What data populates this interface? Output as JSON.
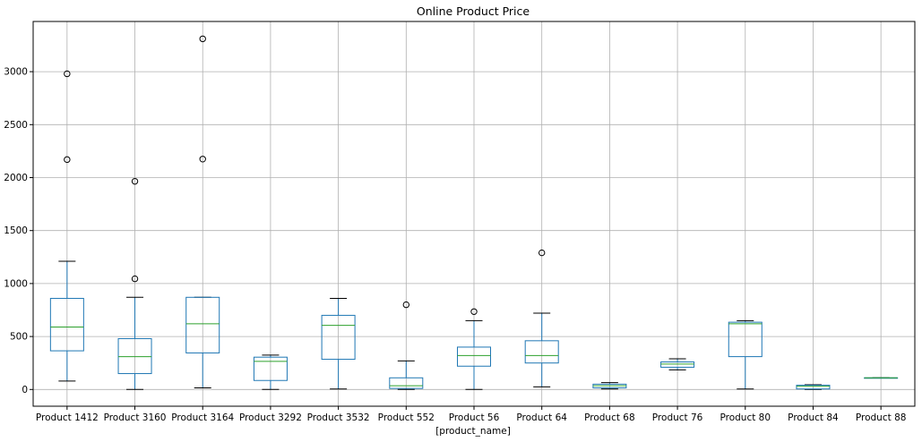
{
  "chart_data": {
    "type": "boxplot",
    "title": "Online Product Price",
    "xlabel": "[product_name]",
    "ylabel": "",
    "ylim": [
      -160,
      3460
    ],
    "yticks": [
      0,
      500,
      1000,
      1500,
      2000,
      2500,
      3000
    ],
    "grid": true,
    "colors": {
      "box": "#1f77b4",
      "median": "#2ca02c",
      "whisker": "#1f77b4",
      "cap": "#000000",
      "flier": "#000000",
      "grid": "#b0b0b0"
    },
    "categories": [
      "Product 1412",
      "Product 3160",
      "Product 3164",
      "Product 3292",
      "Product 3532",
      "Product 552",
      "Product 56",
      "Product 64",
      "Product 68",
      "Product 76",
      "Product 80",
      "Product 84",
      "Product 88"
    ],
    "boxes": [
      {
        "whislo": 80,
        "q1": 365,
        "med": 590,
        "q3": 860,
        "whishi": 1210,
        "fliers": [
          2170,
          2980
        ]
      },
      {
        "whislo": 0,
        "q1": 150,
        "med": 310,
        "q3": 480,
        "whishi": 870,
        "fliers": [
          1045,
          1965
        ]
      },
      {
        "whislo": 15,
        "q1": 345,
        "med": 620,
        "q3": 870,
        "whishi": 870,
        "fliers": [
          2175,
          3310
        ]
      },
      {
        "whislo": 0,
        "q1": 85,
        "med": 265,
        "q3": 305,
        "whishi": 325,
        "fliers": []
      },
      {
        "whislo": 5,
        "q1": 285,
        "med": 605,
        "q3": 700,
        "whishi": 860,
        "fliers": []
      },
      {
        "whislo": 0,
        "q1": 10,
        "med": 35,
        "q3": 110,
        "whishi": 270,
        "fliers": [
          800
        ]
      },
      {
        "whislo": 0,
        "q1": 220,
        "med": 320,
        "q3": 400,
        "whishi": 650,
        "fliers": [
          735
        ]
      },
      {
        "whislo": 25,
        "q1": 250,
        "med": 320,
        "q3": 460,
        "whishi": 720,
        "fliers": [
          1290
        ]
      },
      {
        "whislo": 5,
        "q1": 15,
        "med": 35,
        "q3": 50,
        "whishi": 65,
        "fliers": []
      },
      {
        "whislo": 185,
        "q1": 210,
        "med": 240,
        "q3": 260,
        "whishi": 290,
        "fliers": []
      },
      {
        "whislo": 5,
        "q1": 310,
        "med": 620,
        "q3": 635,
        "whishi": 650,
        "fliers": []
      },
      {
        "whislo": 0,
        "q1": 5,
        "med": 30,
        "q3": 40,
        "whishi": 45,
        "fliers": []
      },
      {
        "whislo": 110,
        "q1": 110,
        "med": 110,
        "q3": 110,
        "whishi": 110,
        "fliers": []
      }
    ]
  }
}
